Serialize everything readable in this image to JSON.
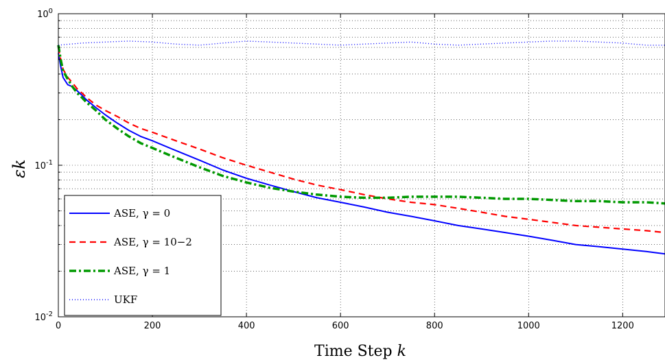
{
  "chart_data": {
    "type": "line",
    "xlabel": "Time Step k",
    "ylabel": "εk",
    "xlim": [
      0,
      1290
    ],
    "ylim": [
      0.01,
      1
    ],
    "yscale": "log",
    "grid": true,
    "legend_position": "bottom-left",
    "x_ticks": [
      {
        "value": 0,
        "label": "0"
      },
      {
        "value": 200,
        "label": "200"
      },
      {
        "value": 400,
        "label": "400"
      },
      {
        "value": 600,
        "label": "600"
      },
      {
        "value": 800,
        "label": "800"
      },
      {
        "value": 1000,
        "label": "1000"
      },
      {
        "value": 1200,
        "label": "1200"
      }
    ],
    "y_ticks": [
      {
        "value": 1,
        "base": "10",
        "exp": "0"
      },
      {
        "value": 0.1,
        "base": "10",
        "exp": "-1"
      },
      {
        "value": 0.01,
        "base": "10",
        "exp": "-2"
      }
    ],
    "series": [
      {
        "name": "ASE, γ = 0",
        "color": "#0000ff",
        "style": "solid",
        "x": [
          0,
          5,
          10,
          20,
          30,
          40,
          50,
          60,
          80,
          100,
          125,
          150,
          175,
          200,
          250,
          300,
          350,
          400,
          450,
          500,
          550,
          600,
          650,
          700,
          750,
          800,
          850,
          900,
          950,
          1000,
          1050,
          1100,
          1150,
          1200,
          1250,
          1290
        ],
        "y": [
          0.55,
          0.45,
          0.38,
          0.34,
          0.33,
          0.31,
          0.29,
          0.27,
          0.24,
          0.215,
          0.19,
          0.17,
          0.155,
          0.145,
          0.125,
          0.108,
          0.093,
          0.082,
          0.074,
          0.067,
          0.061,
          0.057,
          0.053,
          0.049,
          0.046,
          0.043,
          0.04,
          0.038,
          0.036,
          0.034,
          0.032,
          0.03,
          0.029,
          0.028,
          0.027,
          0.026
        ]
      },
      {
        "name": "ASE, γ = 10−2",
        "color": "#ff0000",
        "style": "dashed",
        "x": [
          0,
          5,
          10,
          20,
          30,
          40,
          50,
          60,
          80,
          100,
          125,
          150,
          175,
          200,
          250,
          300,
          350,
          400,
          450,
          500,
          550,
          600,
          650,
          700,
          750,
          800,
          850,
          900,
          950,
          1000,
          1050,
          1100,
          1150,
          1200,
          1250,
          1290
        ],
        "y": [
          0.6,
          0.5,
          0.43,
          0.38,
          0.35,
          0.32,
          0.3,
          0.28,
          0.25,
          0.23,
          0.21,
          0.19,
          0.175,
          0.165,
          0.145,
          0.128,
          0.112,
          0.1,
          0.09,
          0.081,
          0.074,
          0.069,
          0.064,
          0.06,
          0.057,
          0.055,
          0.052,
          0.049,
          0.046,
          0.044,
          0.042,
          0.04,
          0.039,
          0.038,
          0.037,
          0.036
        ]
      },
      {
        "name": "ASE, γ = 1",
        "color": "#009900",
        "style": "dashdot",
        "x": [
          0,
          5,
          10,
          20,
          30,
          40,
          50,
          60,
          80,
          100,
          125,
          150,
          175,
          200,
          250,
          300,
          350,
          400,
          450,
          500,
          550,
          600,
          650,
          700,
          750,
          800,
          850,
          900,
          950,
          1000,
          1050,
          1100,
          1150,
          1200,
          1250,
          1290
        ],
        "y": [
          0.62,
          0.5,
          0.42,
          0.37,
          0.33,
          0.3,
          0.28,
          0.26,
          0.23,
          0.2,
          0.175,
          0.155,
          0.14,
          0.13,
          0.112,
          0.097,
          0.085,
          0.077,
          0.071,
          0.067,
          0.064,
          0.062,
          0.061,
          0.061,
          0.062,
          0.062,
          0.062,
          0.061,
          0.06,
          0.06,
          0.059,
          0.058,
          0.058,
          0.057,
          0.057,
          0.056
        ]
      },
      {
        "name": "UKF",
        "color": "#0000ff",
        "style": "dotted",
        "x": [
          0,
          50,
          100,
          150,
          200,
          250,
          300,
          350,
          400,
          450,
          500,
          550,
          600,
          650,
          700,
          750,
          800,
          850,
          900,
          950,
          1000,
          1050,
          1100,
          1150,
          1200,
          1250,
          1290
        ],
        "y": [
          0.62,
          0.64,
          0.65,
          0.66,
          0.65,
          0.63,
          0.62,
          0.64,
          0.66,
          0.65,
          0.64,
          0.63,
          0.62,
          0.63,
          0.64,
          0.65,
          0.63,
          0.62,
          0.63,
          0.64,
          0.65,
          0.66,
          0.66,
          0.65,
          0.64,
          0.62,
          0.62
        ]
      }
    ]
  }
}
